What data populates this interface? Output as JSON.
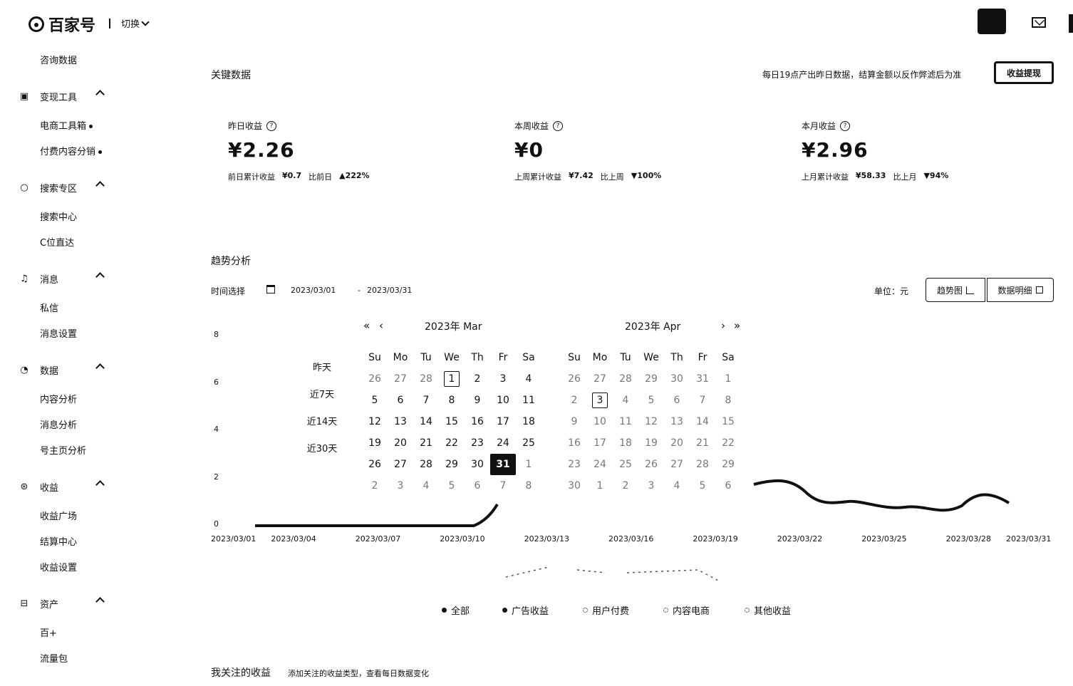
{
  "header": {
    "brand": "百家号",
    "switch_label": "切换"
  },
  "sidebar": {
    "top_item": "咨询数据",
    "groups": [
      {
        "label": "变现工具",
        "icon": "bag-icon",
        "items": [
          "电商工具箱",
          "付费内容分销"
        ]
      },
      {
        "label": "搜索专区",
        "icon": "search-icon",
        "items": [
          "搜索中心",
          "C位直达"
        ]
      },
      {
        "label": "消息",
        "icon": "bell-icon",
        "items": [
          "私信",
          "消息设置"
        ]
      },
      {
        "label": "数据",
        "icon": "pie-icon",
        "items": [
          "内容分析",
          "消息分析",
          "号主页分析"
        ]
      },
      {
        "label": "收益",
        "icon": "coin-icon",
        "items": [
          "收益广场",
          "结算中心",
          "收益设置"
        ]
      },
      {
        "label": "资产",
        "icon": "wallet-icon",
        "items": [
          "百+",
          "流量包"
        ]
      }
    ]
  },
  "key_data": {
    "title": "关键数据",
    "note": "每日19点产出昨日数据，结算金额以反作弊滤后为准",
    "withdraw_label": "收益提现",
    "cards": [
      {
        "label": "昨日收益",
        "value": "¥2.26",
        "sub_label": "前日累计收益",
        "sub_value": "¥0.7",
        "cmp_label": "比前日",
        "cmp_value": "▲222%"
      },
      {
        "label": "本周收益",
        "value": "¥0",
        "sub_label": "上周累计收益",
        "sub_value": "¥7.42",
        "cmp_label": "比上周",
        "cmp_value": "▼100%"
      },
      {
        "label": "本月收益",
        "value": "¥2.96",
        "sub_label": "上月累计收益",
        "sub_value": "¥58.33",
        "cmp_label": "比上月",
        "cmp_value": "▼94%"
      }
    ]
  },
  "trend": {
    "title": "趋势分析",
    "time_label": "时间选择",
    "start_date": "2023/03/01",
    "range_sep": "-",
    "end_date": "2023/03/31",
    "unit_label": "单位：元",
    "view_trend": "趋势图",
    "view_detail": "数据明细"
  },
  "datepicker": {
    "quick": [
      "昨天",
      "近7天",
      "近14天",
      "近30天"
    ],
    "left_title": "2023年  Mar",
    "right_title": "2023年  Apr",
    "weekdays": [
      "Su",
      "Mo",
      "Tu",
      "We",
      "Th",
      "Fr",
      "Sa"
    ],
    "left_days": [
      "26",
      "27",
      "28",
      "1",
      "2",
      "3",
      "4",
      "5",
      "6",
      "7",
      "8",
      "9",
      "10",
      "11",
      "12",
      "13",
      "14",
      "15",
      "16",
      "17",
      "18",
      "19",
      "20",
      "21",
      "22",
      "23",
      "24",
      "25",
      "26",
      "27",
      "28",
      "29",
      "30",
      "31",
      "1",
      "2",
      "3",
      "4",
      "5",
      "6",
      "7",
      "8"
    ],
    "right_days": [
      "26",
      "27",
      "28",
      "29",
      "30",
      "31",
      "1",
      "2",
      "3",
      "4",
      "5",
      "6",
      "7",
      "8",
      "9",
      "10",
      "11",
      "12",
      "13",
      "14",
      "15",
      "16",
      "17",
      "18",
      "19",
      "20",
      "21",
      "22",
      "23",
      "24",
      "25",
      "26",
      "27",
      "28",
      "29",
      "30",
      "1",
      "2",
      "3",
      "4",
      "5",
      "6"
    ]
  },
  "chart_data": {
    "type": "line",
    "y_ticks": [
      "8",
      "6",
      "4",
      "2",
      "0"
    ],
    "ylim": [
      0,
      8
    ],
    "x_ticks": [
      "2023/03/01",
      "2023/03/04",
      "2023/03/07",
      "2023/03/10",
      "2023/03/13",
      "2023/03/16",
      "2023/03/19",
      "2023/03/22",
      "2023/03/25",
      "2023/03/28",
      "2023/03/31"
    ],
    "series": [
      {
        "name": "全部",
        "active": true
      },
      {
        "name": "广告收益",
        "active": true
      },
      {
        "name": "用户付费",
        "active": false
      },
      {
        "name": "内容电商",
        "active": false
      },
      {
        "name": "其他收益",
        "active": false
      }
    ]
  },
  "focus": {
    "title": "我关注的收益",
    "desc": "添加关注的收益类型，查看每日数据变化"
  }
}
